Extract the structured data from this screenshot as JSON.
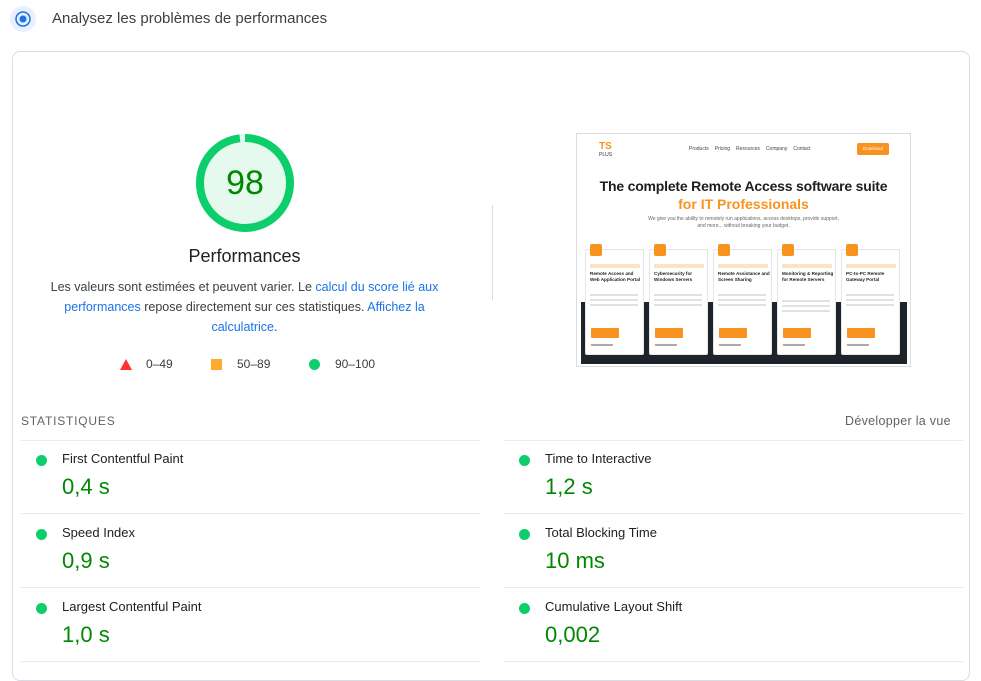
{
  "header": {
    "title": "Analysez les problèmes de performances",
    "icon": "lighthouse-icon",
    "icon_color": "#1a73e8"
  },
  "score": {
    "value": "98",
    "fraction": 0.98,
    "color": "#0cce6b",
    "text_color": "#008800",
    "title": "Performances",
    "desc_prefix": "Les valeurs sont estimées et peuvent varier. Le ",
    "desc_link1": "calcul du score lié aux performances",
    "desc_mid": " repose directement sur ces statistiques. ",
    "desc_link2": "Affichez la calculatrice",
    "desc_suffix": "."
  },
  "legend": [
    {
      "range": "0–49",
      "shape": "triangle",
      "color": "#ff3333"
    },
    {
      "range": "50–89",
      "shape": "square",
      "color": "#ffaa33"
    },
    {
      "range": "90–100",
      "shape": "circle",
      "color": "#0cce6b"
    }
  ],
  "screenshot": {
    "logo": "TS",
    "logo_sub": "PLUS",
    "nav_links": [
      "Products",
      "Pricing",
      "Resources",
      "Company",
      "Contact"
    ],
    "nav_button": "Download",
    "headline1": "The complete Remote Access software suite",
    "headline2": "for IT Professionals",
    "subtitle": "We give you the ability to remotely run applications, access desktops, provide support, and more... without breaking your budget.",
    "cards": [
      "Remote Access and Web Application Portal",
      "Cybersecurity for Windows Servers",
      "Remote Assistance and Screen Sharing",
      "Monitoring & Reporting for Remote Servers",
      "PC-to-PC Remote Gateway Portal"
    ]
  },
  "stats": {
    "label": "STATISTIQUES",
    "expand": "Développer la vue",
    "metrics": [
      {
        "name": "First Contentful Paint",
        "value": "0,4 s",
        "status_color": "#0cce6b"
      },
      {
        "name": "Time to Interactive",
        "value": "1,2 s",
        "status_color": "#0cce6b"
      },
      {
        "name": "Speed Index",
        "value": "0,9 s",
        "status_color": "#0cce6b"
      },
      {
        "name": "Total Blocking Time",
        "value": "10 ms",
        "status_color": "#0cce6b"
      },
      {
        "name": "Largest Contentful Paint",
        "value": "1,0 s",
        "status_color": "#0cce6b"
      },
      {
        "name": "Cumulative Layout Shift",
        "value": "0,002",
        "status_color": "#0cce6b"
      }
    ]
  }
}
